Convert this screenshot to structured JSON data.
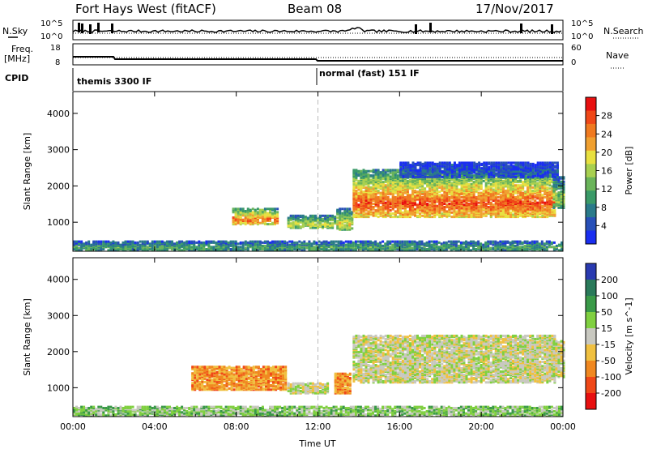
{
  "header": {
    "station": "Fort Hays West (fitACF)",
    "beam": "Beam 08",
    "date": "17/Nov/2017"
  },
  "top_panels": {
    "nsky": {
      "label": "N.Sky",
      "y_ticks": [
        "10^5",
        "10^0"
      ],
      "right_label": "N.Search",
      "right_ticks": [
        "10^5",
        "10^0"
      ]
    },
    "freq": {
      "label_line1": "Freq.",
      "label_line2": "[MHz]",
      "y_ticks": [
        "18",
        "8"
      ],
      "right_label": "Nave",
      "right_ticks": [
        "60",
        "0"
      ]
    },
    "cpid": {
      "label": "CPID",
      "segments": [
        "themis 3300 IF",
        "normal (fast) 151 IF"
      ]
    }
  },
  "chart_data": [
    {
      "type": "heatmap",
      "name": "power",
      "xlabel": "",
      "ylabel": "Slant Range [km]",
      "x_ticks": [
        "00:00",
        "04:00",
        "08:00",
        "12:00",
        "16:00",
        "20:00",
        "00:00"
      ],
      "y_ticks": [
        "1000",
        "2000",
        "3000",
        "4000"
      ],
      "ylim": [
        200,
        4600
      ],
      "xlim_hours": [
        0,
        24
      ],
      "colorbar": {
        "label": "Power [dB]",
        "ticks": [
          "4",
          "8",
          "12",
          "16",
          "20",
          "24",
          "28"
        ],
        "colors": [
          "#1a2ef0",
          "#2850b8",
          "#2a7a8a",
          "#3a9a68",
          "#6ab45a",
          "#a8d050",
          "#e8e040",
          "#f0a030",
          "#f07a20",
          "#f04818",
          "#e81010"
        ]
      },
      "regions": [
        {
          "t0": 0.0,
          "t1": 24.0,
          "r0": 230,
          "r1": 500,
          "level": 0.35
        },
        {
          "t0": 7.8,
          "t1": 10.0,
          "r0": 950,
          "r1": 1400,
          "level": 0.8
        },
        {
          "t0": 10.5,
          "t1": 12.8,
          "r0": 850,
          "r1": 1200,
          "level": 0.55
        },
        {
          "t0": 12.9,
          "t1": 13.7,
          "r0": 800,
          "r1": 1400,
          "level": 0.6
        },
        {
          "t0": 13.7,
          "t1": 23.6,
          "r0": 1150,
          "r1": 2450,
          "level": 0.85
        },
        {
          "t0": 23.5,
          "t1": 24.0,
          "r0": 1400,
          "r1": 2250,
          "level": 0.5
        },
        {
          "t0": 16.0,
          "t1": 23.8,
          "r0": 2250,
          "r1": 2650,
          "level": 0.15
        }
      ]
    },
    {
      "type": "heatmap",
      "name": "velocity",
      "xlabel": "Time UT",
      "ylabel": "Slant Range [km]",
      "x_ticks": [
        "00:00",
        "04:00",
        "08:00",
        "12:00",
        "16:00",
        "20:00",
        "00:00"
      ],
      "y_ticks": [
        "1000",
        "2000",
        "3000",
        "4000"
      ],
      "ylim": [
        200,
        4600
      ],
      "xlim_hours": [
        0,
        24
      ],
      "colorbar": {
        "label": "Velocity [m s^-1]",
        "ticks": [
          "200",
          "100",
          "50",
          "15",
          "-15",
          "-50",
          "-100",
          "-200"
        ],
        "colors": [
          "#2a3ab0",
          "#2a7a5a",
          "#3a9a48",
          "#80d040",
          "#c8c8c0",
          "#f0c040",
          "#f08820",
          "#f04818",
          "#e81010"
        ]
      },
      "regions": [
        {
          "t0": 0.0,
          "t1": 24.0,
          "r0": 230,
          "r1": 500,
          "level": 0.4
        },
        {
          "t0": 5.8,
          "t1": 10.4,
          "r0": 950,
          "r1": 1600,
          "level": 0.7
        },
        {
          "t0": 10.5,
          "t1": 12.5,
          "r0": 850,
          "r1": 1150,
          "level": 0.5
        },
        {
          "t0": 12.8,
          "t1": 13.6,
          "r0": 850,
          "r1": 1400,
          "level": 0.7
        },
        {
          "t0": 13.7,
          "t1": 23.6,
          "r0": 1150,
          "r1": 2450,
          "level": 0.5
        },
        {
          "t0": 23.5,
          "t1": 24.0,
          "r0": 1300,
          "r1": 2300,
          "level": 0.5
        }
      ]
    }
  ]
}
